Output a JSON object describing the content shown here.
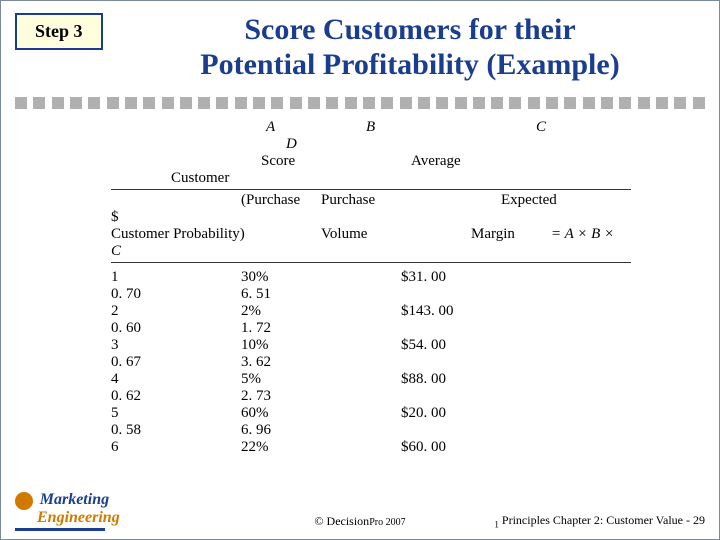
{
  "step": "Step 3",
  "title_l1": "Score Customers for their",
  "title_l2": "Potential Profitability (Example)",
  "hdr": {
    "A": "A",
    "B": "B",
    "C": "C",
    "D": "D",
    "score": "Score",
    "average": "Average",
    "customer": "Customer",
    "purchase1": "(Purchase",
    "purchase2": "Purchase",
    "expected": "Expected",
    "dollar": "$",
    "cust_prob": "Customer Probability)",
    "volume": "Volume",
    "margin": "Margin",
    "formula": "= A × B ×",
    "Cital": "C"
  },
  "rows": [
    [
      "1",
      "30%",
      "$31. 00"
    ],
    [
      "0. 70",
      "6. 51",
      ""
    ],
    [
      "2",
      "2%",
      "$143. 00"
    ],
    [
      "0. 60",
      "1. 72",
      ""
    ],
    [
      "3",
      "10%",
      "$54. 00"
    ],
    [
      "0. 67",
      "3. 62",
      ""
    ],
    [
      "4",
      "5%",
      "$88. 00"
    ],
    [
      "0. 62",
      "2. 73",
      ""
    ],
    [
      "5",
      "60%",
      "$20. 00"
    ],
    [
      "0. 58",
      "6. 96",
      ""
    ],
    [
      "6",
      "22%",
      "$60. 00"
    ]
  ],
  "footer": {
    "center_a": "© Decision",
    "center_b": "Pro 2007",
    "right": "Principles Chapter 2: Customer Value - 29",
    "right_extra": "1"
  },
  "logo": {
    "m": "Marketing",
    "e": "Engineering"
  },
  "colors": {
    "blue": "#1a3d8f",
    "yellow": "#ffffde",
    "grey": "#b0b0b0",
    "orange": "#d07a00"
  }
}
